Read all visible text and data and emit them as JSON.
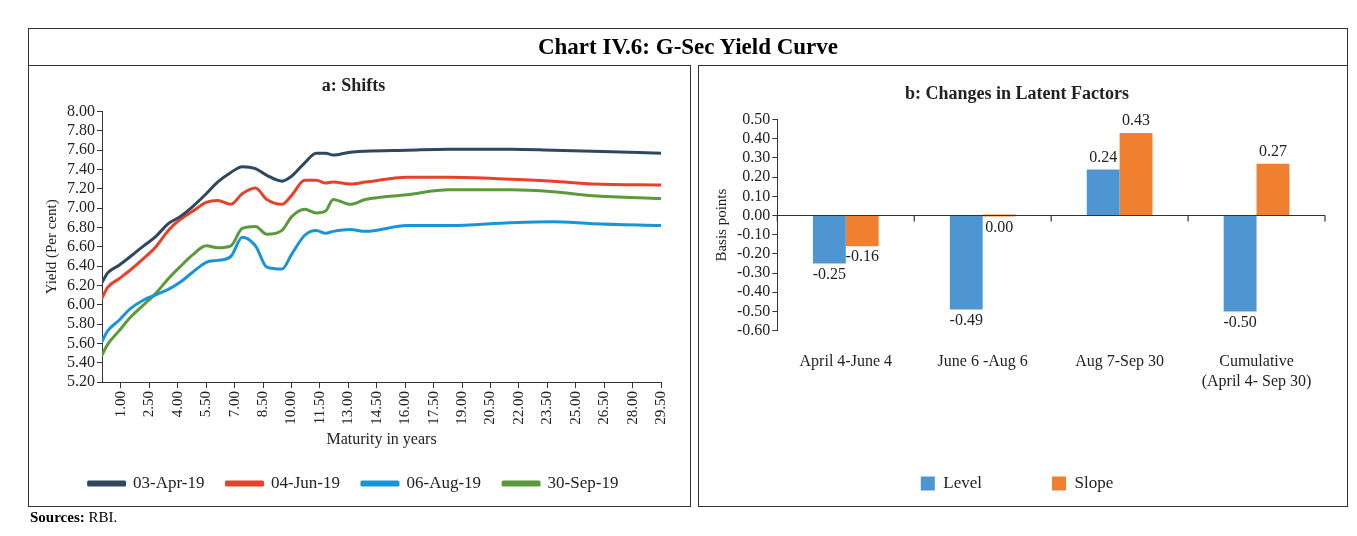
{
  "chart_data": [
    {
      "type": "line",
      "title": "a: Shifts",
      "xlabel": "Maturity in years",
      "ylabel": "Yield (Per cent)",
      "annotations": [
        "Chart IV.6: G-Sec Yield Curve",
        "Sources: RBI."
      ],
      "x": [
        0,
        0.3,
        0.9,
        1.5,
        2.2,
        2.8,
        3.5,
        4.1,
        4.8,
        5.5,
        6.1,
        6.8,
        7.4,
        8.1,
        8.7,
        9.5,
        10,
        10.7,
        11.3,
        11.8,
        12.2,
        13.1,
        13.9,
        16.1,
        18.3,
        21.6,
        23.8,
        25.9,
        29.5
      ],
      "series": [
        {
          "name": "03-Apr-19",
          "color": "#2f4860",
          "values": [
            6.23,
            6.33,
            6.41,
            6.5,
            6.61,
            6.7,
            6.84,
            6.91,
            7.02,
            7.15,
            7.27,
            7.37,
            7.43,
            7.41,
            7.34,
            7.28,
            7.33,
            7.47,
            7.57,
            7.57,
            7.55,
            7.58,
            7.59,
            7.6,
            7.61,
            7.61,
            7.6,
            7.59,
            7.57
          ]
        },
        {
          "name": "04-Jun-19",
          "color": "#e8412a",
          "values": [
            6.07,
            6.18,
            6.27,
            6.36,
            6.48,
            6.59,
            6.77,
            6.88,
            6.97,
            7.06,
            7.08,
            7.04,
            7.15,
            7.21,
            7.09,
            7.04,
            7.13,
            7.29,
            7.29,
            7.26,
            7.27,
            7.25,
            7.27,
            7.32,
            7.32,
            7.3,
            7.28,
            7.25,
            7.24
          ]
        },
        {
          "name": "06-Aug-19",
          "color": "#1795d6",
          "values": [
            5.62,
            5.73,
            5.84,
            5.96,
            6.05,
            6.1,
            6.16,
            6.23,
            6.34,
            6.44,
            6.46,
            6.5,
            6.7,
            6.61,
            6.39,
            6.37,
            6.52,
            6.72,
            6.77,
            6.74,
            6.76,
            6.78,
            6.76,
            6.82,
            6.82,
            6.85,
            6.86,
            6.84,
            6.82
          ]
        },
        {
          "name": "30-Sep-19",
          "color": "#5a9a3a",
          "values": [
            5.48,
            5.59,
            5.73,
            5.87,
            6.0,
            6.11,
            6.27,
            6.39,
            6.52,
            6.61,
            6.59,
            6.61,
            6.79,
            6.81,
            6.73,
            6.77,
            6.91,
            6.99,
            6.95,
            6.97,
            7.09,
            7.04,
            7.09,
            7.14,
            7.19,
            7.19,
            7.17,
            7.13,
            7.1
          ]
        }
      ],
      "xlim": [
        0,
        29.5
      ],
      "xticks": [
        {
          "value": 1,
          "label": "1.00"
        },
        {
          "value": 2.5,
          "label": "2.50"
        },
        {
          "value": 4,
          "label": "4.00"
        },
        {
          "value": 5.5,
          "label": "5.50"
        },
        {
          "value": 7,
          "label": "7.00"
        },
        {
          "value": 8.5,
          "label": "8.50"
        },
        {
          "value": 10,
          "label": "10.00"
        },
        {
          "value": 11.5,
          "label": "11.50"
        },
        {
          "value": 13,
          "label": "13.00"
        },
        {
          "value": 14.5,
          "label": "14.50"
        },
        {
          "value": 16,
          "label": "16.00"
        },
        {
          "value": 17.5,
          "label": "17.50"
        },
        {
          "value": 19,
          "label": "19.00"
        },
        {
          "value": 20.5,
          "label": "20.50"
        },
        {
          "value": 22,
          "label": "22.00"
        },
        {
          "value": 23.5,
          "label": "23.50"
        },
        {
          "value": 25,
          "label": "25.00"
        },
        {
          "value": 26.5,
          "label": "26.50"
        },
        {
          "value": 28,
          "label": "28.00"
        },
        {
          "value": 29.5,
          "label": "29.50"
        }
      ],
      "ylim": [
        5.2,
        8.0
      ],
      "yticks": [
        {
          "value": 5.2,
          "label": "5.20"
        },
        {
          "value": 5.4,
          "label": "5.40"
        },
        {
          "value": 5.6,
          "label": "5.60"
        },
        {
          "value": 5.8,
          "label": "5.80"
        },
        {
          "value": 6.0,
          "label": "6.00"
        },
        {
          "value": 6.2,
          "label": "6.20"
        },
        {
          "value": 6.4,
          "label": "6.40"
        },
        {
          "value": 6.6,
          "label": "6.60"
        },
        {
          "value": 6.8,
          "label": "6.80"
        },
        {
          "value": 7.0,
          "label": "7.00"
        },
        {
          "value": 7.2,
          "label": "7.20"
        },
        {
          "value": 7.4,
          "label": "7.40"
        },
        {
          "value": 7.6,
          "label": "7.60"
        },
        {
          "value": 7.8,
          "label": "7.80"
        },
        {
          "value": 8.0,
          "label": "8.00"
        }
      ],
      "legend": "bottom",
      "marker": "none",
      "line_style": "solid"
    },
    {
      "type": "bar",
      "title": "b: Changes in Latent Factors",
      "ylabel": "Basis points",
      "categories": [
        "April 4-June 4",
        "June 6 -Aug 6",
        "Aug 7-Sep 30",
        "Cumulative (April 4- Sep 30)"
      ],
      "series": [
        {
          "name": "Level",
          "color": "#4e96d2",
          "values": [
            -0.25,
            -0.49,
            0.24,
            -0.5
          ],
          "value_labels": [
            "-0.25",
            "-0.49",
            "0.24",
            "-0.50"
          ]
        },
        {
          "name": "Slope",
          "color": "#f08030",
          "values": [
            -0.16,
            0.0,
            0.43,
            0.27
          ],
          "value_labels": [
            "-0.16",
            "0.00",
            "0.43",
            "0.27"
          ]
        }
      ],
      "ylim": [
        -0.6,
        0.5
      ],
      "yticks": [
        {
          "value": -0.6,
          "label": "-0.60"
        },
        {
          "value": -0.5,
          "label": "-0.50"
        },
        {
          "value": -0.4,
          "label": "-0.40"
        },
        {
          "value": -0.3,
          "label": "-0.30"
        },
        {
          "value": -0.2,
          "label": "-0.20"
        },
        {
          "value": -0.1,
          "label": "-0.10"
        },
        {
          "value": 0,
          "label": "0.00"
        },
        {
          "value": 0.1,
          "label": "0.10"
        },
        {
          "value": 0.2,
          "label": "0.20"
        },
        {
          "value": 0.3,
          "label": "0.30"
        },
        {
          "value": 0.4,
          "label": "0.40"
        },
        {
          "value": 0.5,
          "label": "0.50"
        }
      ],
      "legend": "bottom"
    }
  ]
}
